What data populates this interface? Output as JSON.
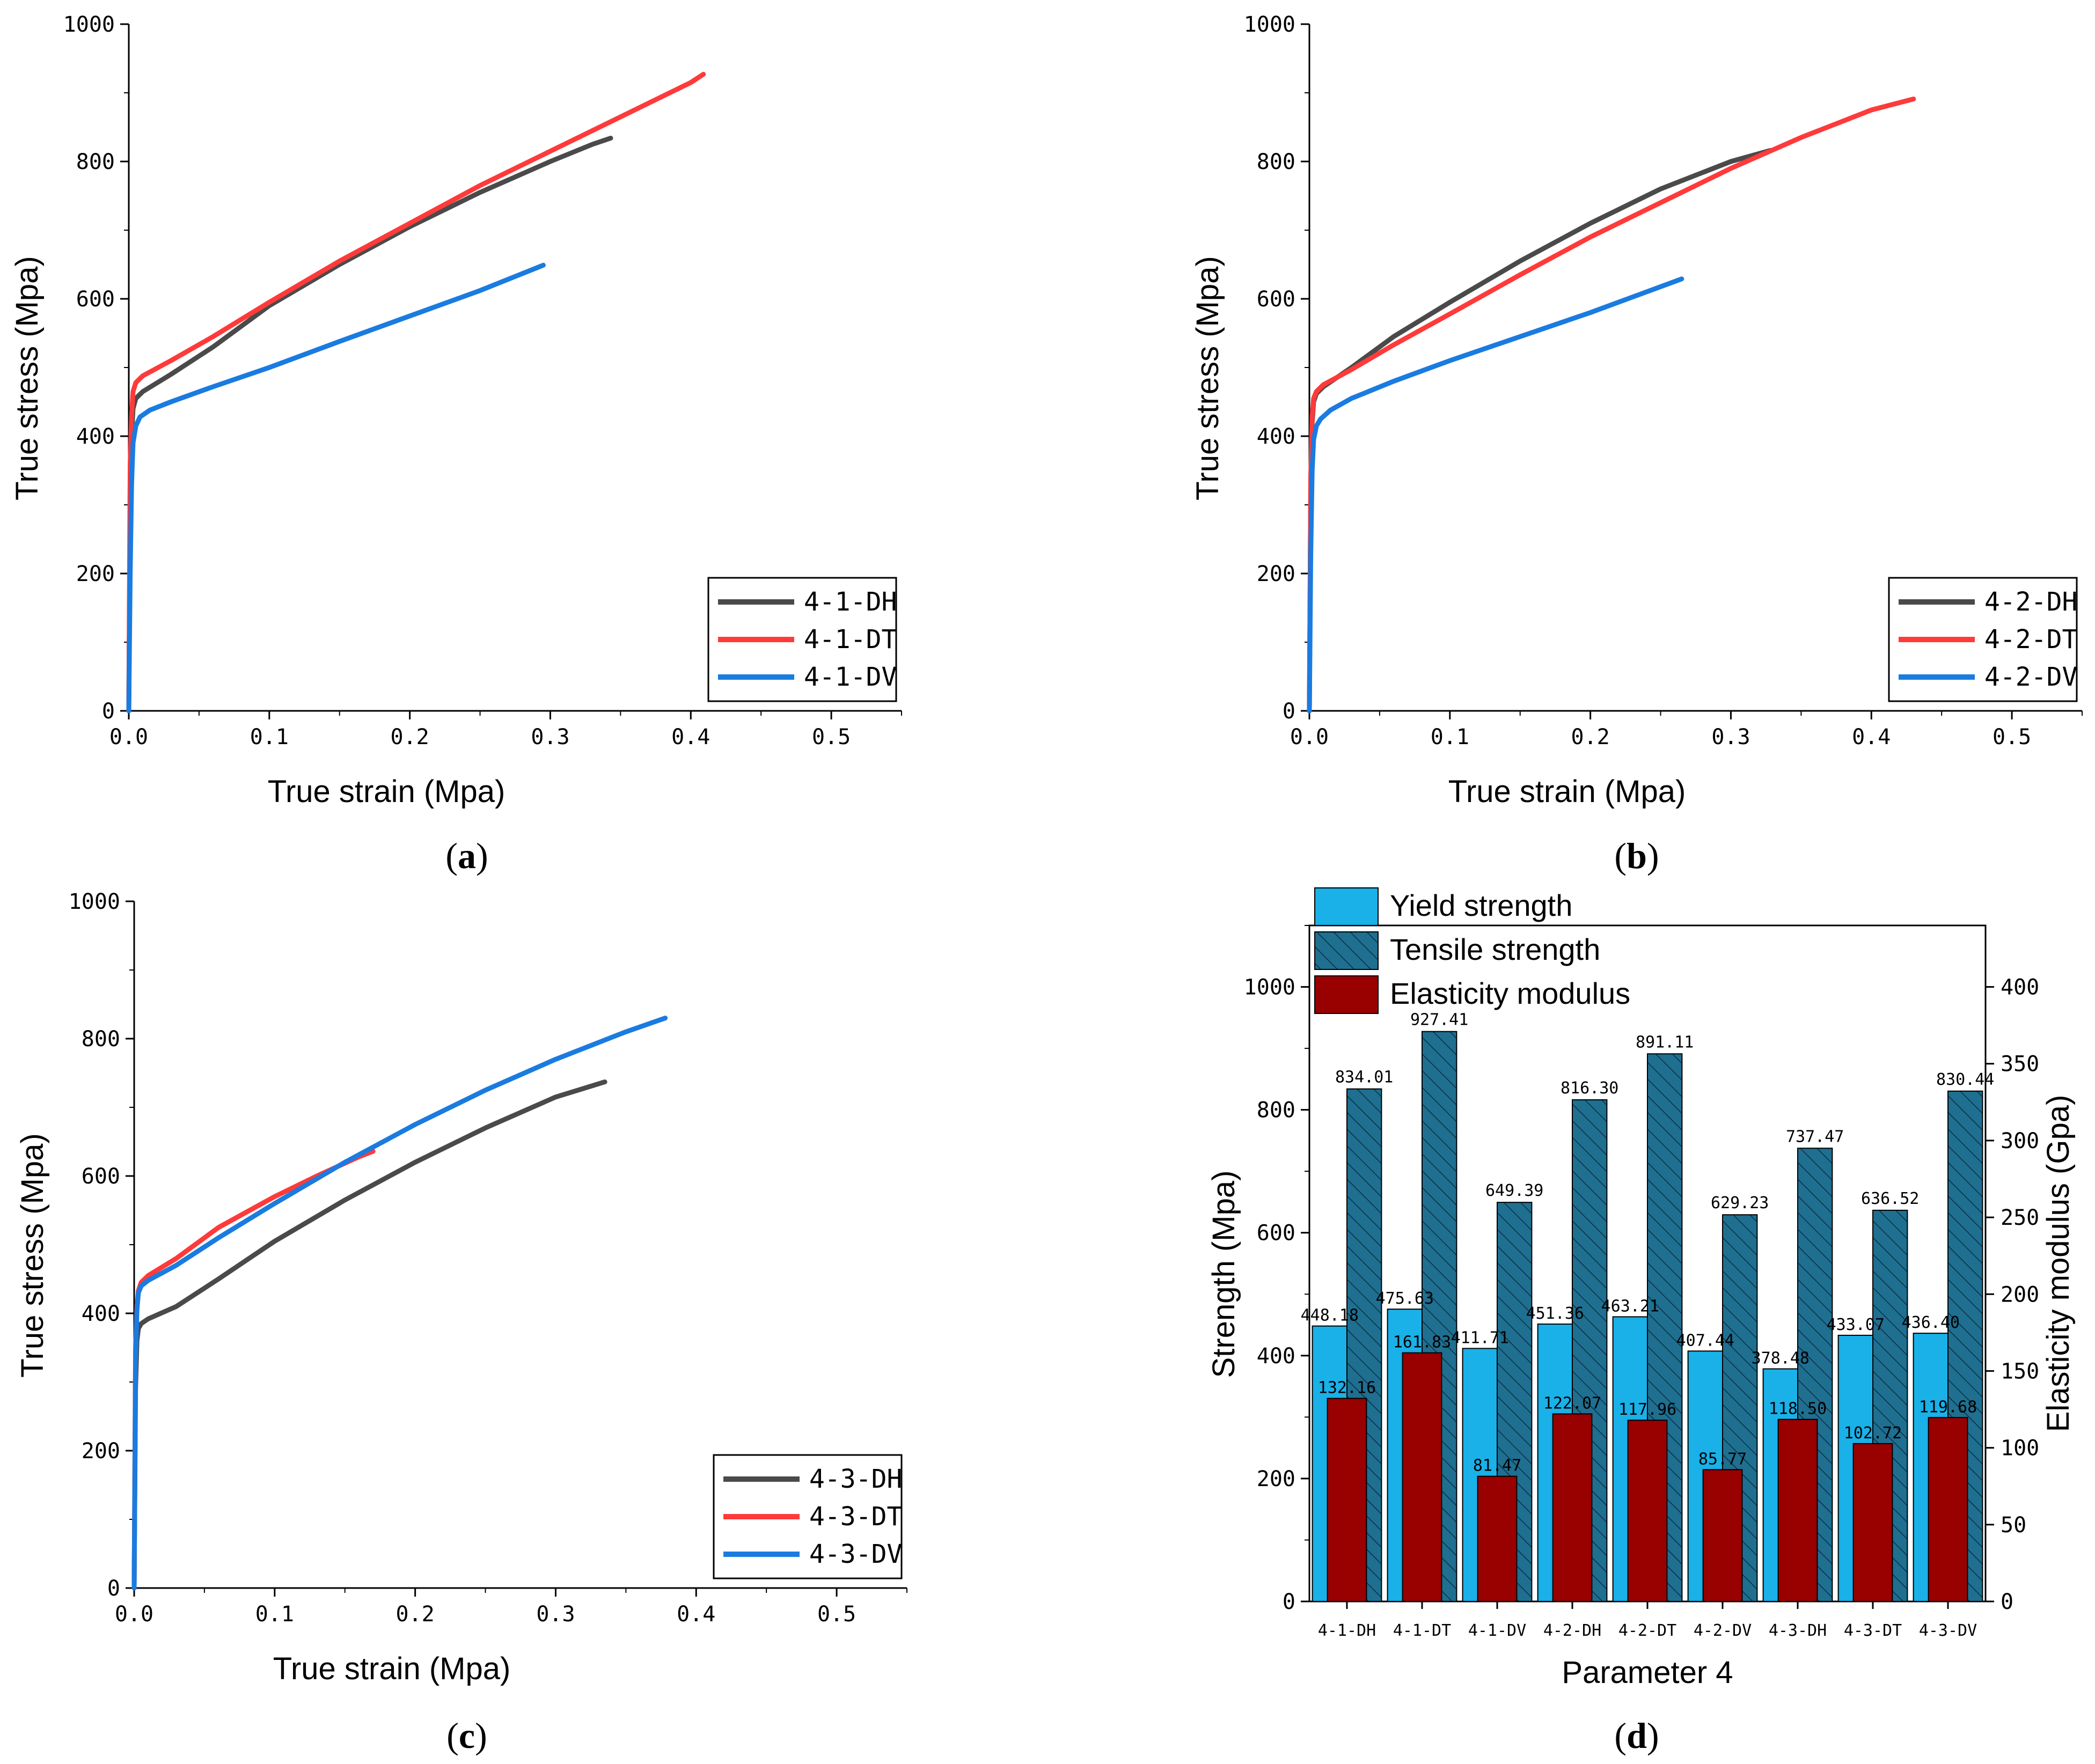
{
  "panels": [
    {
      "id": "a",
      "panel_label": "a",
      "chart_index": 0
    },
    {
      "id": "b",
      "panel_label": "b",
      "chart_index": 1
    },
    {
      "id": "c",
      "panel_label": "c",
      "chart_index": 2
    },
    {
      "id": "d",
      "panel_label": "d",
      "chart_index": 3
    }
  ],
  "colors": {
    "DH": "#4a4a4a",
    "DT": "#ff3a3a",
    "DV": "#1a7be0",
    "yield": "#1ab0e8",
    "tensile": "#1f6f91",
    "modulus": "#990000"
  },
  "chart_data": [
    {
      "type": "line",
      "title": "",
      "xlabel": "True strain (Mpa)",
      "ylabel": "True stress (Mpa)",
      "xlim": [
        0,
        0.55
      ],
      "ylim": [
        0,
        1000
      ],
      "xticks": [
        "0.0",
        "0.1",
        "0.2",
        "0.3",
        "0.4",
        "0.5"
      ],
      "yticks": [
        "0",
        "200",
        "400",
        "600",
        "800",
        "1000"
      ],
      "legend_position": "bottom-right",
      "series": [
        {
          "name": "4-1-DH",
          "color_key": "DH",
          "x": [
            0,
            0.001,
            0.002,
            0.003,
            0.005,
            0.01,
            0.03,
            0.06,
            0.1,
            0.15,
            0.2,
            0.25,
            0.3,
            0.33,
            0.343
          ],
          "y": [
            0,
            300,
            400,
            440,
            455,
            465,
            490,
            530,
            590,
            650,
            705,
            755,
            800,
            825,
            834
          ]
        },
        {
          "name": "4-1-DT",
          "color_key": "DT",
          "x": [
            0,
            0.001,
            0.002,
            0.003,
            0.005,
            0.01,
            0.03,
            0.06,
            0.1,
            0.15,
            0.2,
            0.25,
            0.3,
            0.35,
            0.4,
            0.409
          ],
          "y": [
            0,
            360,
            430,
            465,
            478,
            488,
            510,
            545,
            595,
            655,
            710,
            765,
            815,
            865,
            915,
            927
          ]
        },
        {
          "name": "4-1-DV",
          "color_key": "DV",
          "x": [
            0,
            0.001,
            0.002,
            0.003,
            0.005,
            0.008,
            0.015,
            0.03,
            0.06,
            0.1,
            0.15,
            0.2,
            0.25,
            0.295
          ],
          "y": [
            0,
            200,
            330,
            390,
            415,
            428,
            438,
            450,
            472,
            500,
            538,
            575,
            612,
            649
          ]
        }
      ]
    },
    {
      "type": "line",
      "title": "",
      "xlabel": "True strain (Mpa)",
      "ylabel": "True stress (Mpa)",
      "xlim": [
        0,
        0.55
      ],
      "ylim": [
        0,
        1000
      ],
      "xticks": [
        "0.0",
        "0.1",
        "0.2",
        "0.3",
        "0.4",
        "0.5"
      ],
      "yticks": [
        "0",
        "200",
        "400",
        "600",
        "800",
        "1000"
      ],
      "legend_position": "bottom-right",
      "series": [
        {
          "name": "4-2-DH",
          "color_key": "DH",
          "x": [
            0,
            0.001,
            0.002,
            0.003,
            0.005,
            0.01,
            0.03,
            0.06,
            0.1,
            0.15,
            0.2,
            0.25,
            0.3,
            0.328
          ],
          "y": [
            0,
            340,
            420,
            450,
            462,
            472,
            500,
            545,
            595,
            655,
            710,
            760,
            800,
            816
          ]
        },
        {
          "name": "4-2-DT",
          "color_key": "DT",
          "x": [
            0,
            0.001,
            0.002,
            0.003,
            0.005,
            0.01,
            0.03,
            0.06,
            0.1,
            0.15,
            0.2,
            0.25,
            0.3,
            0.35,
            0.4,
            0.43
          ],
          "y": [
            0,
            340,
            430,
            455,
            465,
            475,
            497,
            533,
            578,
            635,
            690,
            740,
            790,
            835,
            875,
            891
          ]
        },
        {
          "name": "4-2-DV",
          "color_key": "DV",
          "x": [
            0,
            0.001,
            0.002,
            0.003,
            0.005,
            0.008,
            0.015,
            0.03,
            0.06,
            0.1,
            0.15,
            0.2,
            0.265
          ],
          "y": [
            0,
            230,
            350,
            395,
            415,
            425,
            438,
            455,
            480,
            510,
            545,
            580,
            629
          ]
        }
      ]
    },
    {
      "type": "line",
      "title": "",
      "xlabel": "True strain (Mpa)",
      "ylabel": "True stress (Mpa)",
      "xlim": [
        0,
        0.55
      ],
      "ylim": [
        0,
        1000
      ],
      "xticks": [
        "0.0",
        "0.1",
        "0.2",
        "0.3",
        "0.4",
        "0.5"
      ],
      "yticks": [
        "0",
        "200",
        "400",
        "600",
        "800",
        "1000"
      ],
      "legend_position": "bottom-right",
      "series": [
        {
          "name": "4-3-DH",
          "color_key": "DH",
          "x": [
            0,
            0.001,
            0.002,
            0.003,
            0.005,
            0.01,
            0.03,
            0.06,
            0.1,
            0.15,
            0.2,
            0.25,
            0.3,
            0.335
          ],
          "y": [
            0,
            290,
            360,
            378,
            385,
            392,
            410,
            450,
            505,
            565,
            620,
            670,
            715,
            737
          ]
        },
        {
          "name": "4-3-DT",
          "color_key": "DT",
          "x": [
            0,
            0.001,
            0.002,
            0.003,
            0.005,
            0.01,
            0.03,
            0.06,
            0.1,
            0.13,
            0.16,
            0.17
          ],
          "y": [
            0,
            350,
            410,
            433,
            445,
            455,
            480,
            525,
            570,
            600,
            628,
            636
          ]
        },
        {
          "name": "4-3-DV",
          "color_key": "DV",
          "x": [
            0,
            0.001,
            0.002,
            0.003,
            0.005,
            0.01,
            0.03,
            0.06,
            0.1,
            0.15,
            0.2,
            0.25,
            0.3,
            0.35,
            0.378
          ],
          "y": [
            0,
            330,
            405,
            430,
            440,
            448,
            470,
            510,
            560,
            620,
            675,
            725,
            770,
            810,
            830
          ]
        }
      ]
    },
    {
      "type": "bar",
      "title": "",
      "xlabel": "Parameter 4",
      "ylabel": "Strength (Mpa)",
      "y2label": "Elasticity modulus (Gpa)",
      "ylim": [
        0,
        1100
      ],
      "y2lim": [
        0,
        440
      ],
      "yticks": [
        "0",
        "200",
        "400",
        "600",
        "800",
        "1000"
      ],
      "y2ticks": [
        "0",
        "50",
        "100",
        "150",
        "200",
        "250",
        "300",
        "350",
        "400"
      ],
      "legend_position": "top-left",
      "categories": [
        "4-1-DH",
        "4-1-DT",
        "4-1-DV",
        "4-2-DH",
        "4-2-DT",
        "4-2-DV",
        "4-3-DH",
        "4-3-DT",
        "4-3-DV"
      ],
      "series": [
        {
          "name": "Yield strength",
          "axis": "left",
          "color_key": "yield",
          "values": [
            448.18,
            475.63,
            411.71,
            451.36,
            463.21,
            407.44,
            378.48,
            433.07,
            436.4
          ],
          "labels": [
            "448.18",
            "475.63",
            "411.71",
            "451.36",
            "463.21",
            "407.44",
            "378.48",
            "433.07",
            "436.40"
          ]
        },
        {
          "name": "Tensile strength",
          "axis": "left",
          "color_key": "tensile",
          "hatched": true,
          "values": [
            834.01,
            927.41,
            649.39,
            816.3,
            891.11,
            629.23,
            737.47,
            636.52,
            830.44
          ],
          "labels": [
            "834.01",
            "927.41",
            "649.39",
            "816.30",
            "891.11",
            "629.23",
            "737.47",
            "636.52",
            "830.44"
          ]
        },
        {
          "name": "Elasticity modulus",
          "axis": "right",
          "color_key": "modulus",
          "values": [
            132.16,
            161.83,
            81.47,
            122.07,
            117.96,
            85.77,
            118.5,
            102.72,
            119.68
          ],
          "labels": [
            "132.16",
            "161.83",
            "81.47",
            "122.07",
            "117.96",
            "85.77",
            "118.50",
            "102.72",
            "119.68"
          ]
        }
      ]
    }
  ]
}
